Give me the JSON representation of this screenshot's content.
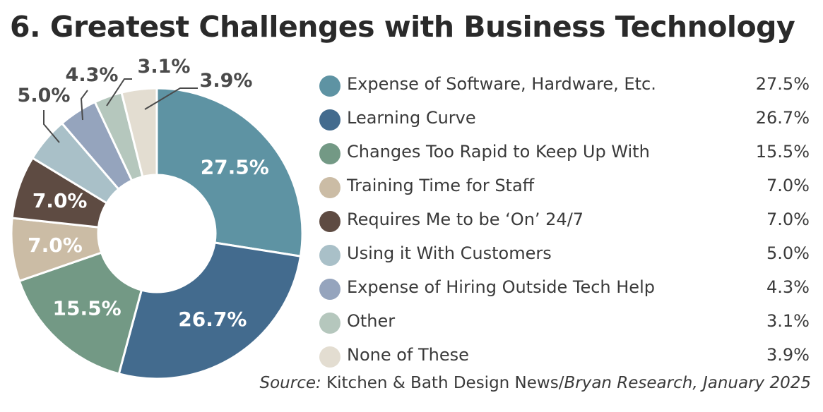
{
  "title": "6. Greatest Challenges with Business Technology",
  "source": {
    "prefix": "Source:",
    "publication": " Kitchen & Bath Design News/",
    "suffix": "Bryan Research, January 2025"
  },
  "chart_data": {
    "type": "pie",
    "donut": true,
    "title": "6. Greatest Challenges with Business Technology",
    "legend_position": "right",
    "slices": [
      {
        "label": "Expense of Software, Hardware, Etc.",
        "value": 27.5,
        "display": "27.5%",
        "color": "#5e93a3"
      },
      {
        "label": "Learning Curve",
        "value": 26.7,
        "display": "26.7%",
        "color": "#436b8e"
      },
      {
        "label": "Changes Too Rapid to Keep Up With",
        "value": 15.5,
        "display": "15.5%",
        "color": "#739985"
      },
      {
        "label": "Training Time for Staff",
        "value": 7.0,
        "display": "7.0%",
        "color": "#cbbca5"
      },
      {
        "label": "Requires Me to be ‘On’ 24/7",
        "value": 7.0,
        "display": "7.0%",
        "color": "#5e4b42"
      },
      {
        "label": "Using it With Customers",
        "value": 5.0,
        "display": "5.0%",
        "color": "#a9c0c8"
      },
      {
        "label": "Expense of Hiring Outside Tech Help",
        "value": 4.3,
        "display": "4.3%",
        "color": "#95a4bd"
      },
      {
        "label": "Other",
        "value": 3.1,
        "display": "3.1%",
        "color": "#b5c7bd"
      },
      {
        "label": "None of These",
        "value": 3.9,
        "display": "3.9%",
        "color": "#e3ddd1"
      }
    ]
  }
}
